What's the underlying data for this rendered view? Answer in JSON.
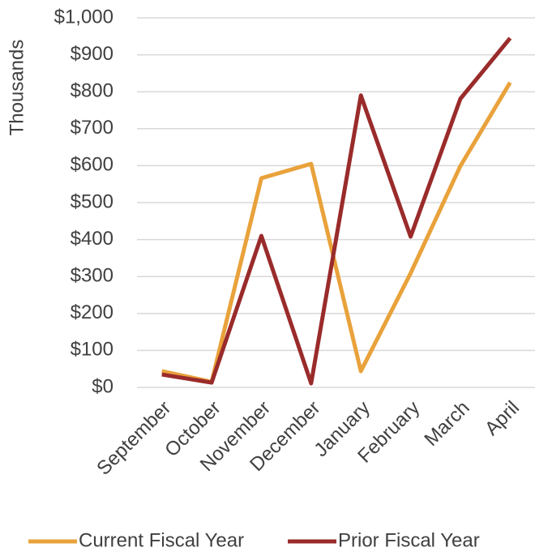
{
  "chart_data": {
    "type": "line",
    "y_axis_label": "Thousands",
    "categories": [
      "September",
      "October",
      "November",
      "December",
      "January",
      "February",
      "March",
      "April"
    ],
    "series": [
      {
        "name": "Current Fiscal Year",
        "color": "#e9a23b",
        "values": [
          44,
          15,
          566,
          605,
          44,
          309,
          599,
          825
        ]
      },
      {
        "name": "Prior Fiscal Year",
        "color": "#9a2b2b",
        "values": [
          35,
          13,
          410,
          11,
          790,
          408,
          781,
          945
        ]
      }
    ],
    "ylim": [
      0,
      1000
    ],
    "yticks": [
      {
        "value": 0,
        "label": "$0"
      },
      {
        "value": 100,
        "label": "$100"
      },
      {
        "value": 200,
        "label": "$200"
      },
      {
        "value": 300,
        "label": "$300"
      },
      {
        "value": 400,
        "label": "$400"
      },
      {
        "value": 500,
        "label": "$500"
      },
      {
        "value": 600,
        "label": "$600"
      },
      {
        "value": 700,
        "label": "$700"
      },
      {
        "value": 800,
        "label": "$800"
      },
      {
        "value": 900,
        "label": "$900"
      },
      {
        "value": 1000,
        "label": "$1,000"
      }
    ],
    "grid": true,
    "legend": "bottom"
  }
}
